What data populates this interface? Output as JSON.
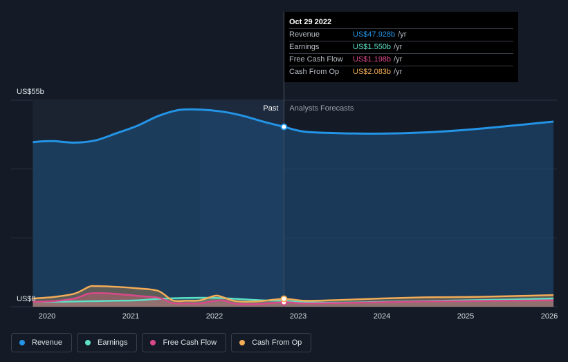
{
  "colors": {
    "revenue": "#2394e6",
    "earnings": "#5de0c6",
    "free_cash_flow": "#d9498a",
    "cash_from_op": "#f3ac57",
    "background": "#151b26"
  },
  "tooltip": {
    "date": "Oct 29 2022",
    "rows": [
      {
        "name": "Revenue",
        "value": "US$47.928b",
        "unit": "/yr",
        "color": "#2394e6"
      },
      {
        "name": "Earnings",
        "value": "US$1.550b",
        "unit": "/yr",
        "color": "#5de0c6"
      },
      {
        "name": "Free Cash Flow",
        "value": "US$1.198b",
        "unit": "/yr",
        "color": "#d9498a"
      },
      {
        "name": "Cash From Op",
        "value": "US$2.083b",
        "unit": "/yr",
        "color": "#f3ac57"
      }
    ]
  },
  "legend": [
    {
      "label": "Revenue",
      "icon": "dot-icon",
      "color": "#2394e6"
    },
    {
      "label": "Earnings",
      "icon": "dot-icon",
      "color": "#5de0c6"
    },
    {
      "label": "Free Cash Flow",
      "icon": "dot-icon",
      "color": "#d9498a"
    },
    {
      "label": "Cash From Op",
      "icon": "dot-icon",
      "color": "#f3ac57"
    }
  ],
  "chart_data": {
    "type": "line",
    "y_top_label": "US$55b",
    "y_bottom_label": "US$0",
    "ylim": [
      0,
      55
    ],
    "xlim": [
      2019.85,
      2026.05
    ],
    "x_ticks": [
      {
        "value": 2020,
        "label": "2020"
      },
      {
        "value": 2021,
        "label": "2021"
      },
      {
        "value": 2022,
        "label": "2022"
      },
      {
        "value": 2023,
        "label": "2023"
      },
      {
        "value": 2024,
        "label": "2024"
      },
      {
        "value": 2025,
        "label": "2025"
      },
      {
        "value": 2026,
        "label": "2026"
      }
    ],
    "divider_x": 2022.83,
    "past_label": "Past",
    "forecast_label": "Analysts Forecasts",
    "grid": true,
    "series": [
      {
        "name": "Revenue",
        "key": "revenue",
        "x": [
          2019.83,
          2019.92,
          2020.08,
          2020.33,
          2020.58,
          2020.83,
          2021.08,
          2021.33,
          2021.58,
          2021.83,
          2022.08,
          2022.33,
          2022.58,
          2022.83,
          2023.08,
          2023.5,
          2024.0,
          2024.5,
          2025.0,
          2025.5,
          2026.05
        ],
        "y": [
          43.8,
          44.0,
          44.1,
          43.7,
          44.3,
          46.2,
          48.2,
          50.8,
          52.4,
          52.5,
          52.0,
          50.9,
          49.3,
          47.9,
          46.6,
          46.2,
          46.1,
          46.4,
          47.1,
          48.1,
          49.3
        ]
      },
      {
        "name": "Earnings",
        "key": "earnings",
        "x": [
          2019.83,
          2020.08,
          2020.33,
          2020.58,
          2020.83,
          2021.08,
          2021.33,
          2021.58,
          2021.83,
          2022.08,
          2022.33,
          2022.58,
          2022.83,
          2023.08,
          2023.5,
          2024.0,
          2024.5,
          2025.0,
          2025.5,
          2026.05
        ],
        "y": [
          1.3,
          1.3,
          1.4,
          1.5,
          1.6,
          1.7,
          2.1,
          2.3,
          2.4,
          2.3,
          2.0,
          1.7,
          1.6,
          1.2,
          1.1,
          1.3,
          1.5,
          1.7,
          1.9,
          2.2
        ]
      },
      {
        "name": "Free Cash Flow",
        "key": "free_cash_flow",
        "x": [
          2019.83,
          2020.08,
          2020.33,
          2020.5,
          2020.67,
          2020.83,
          2021.08,
          2021.33,
          2021.5,
          2021.67,
          2021.83,
          2022.08,
          2022.25,
          2022.5,
          2022.83,
          2023.08,
          2023.5,
          2024.0,
          2024.5,
          2025.0,
          2025.5,
          2026.05
        ],
        "y": [
          1.3,
          1.5,
          2.2,
          3.5,
          3.6,
          3.4,
          2.9,
          2.4,
          1.0,
          0.9,
          0.9,
          1.7,
          0.8,
          0.7,
          1.2,
          0.9,
          1.0,
          1.2,
          1.4,
          1.5,
          1.6,
          1.7
        ]
      },
      {
        "name": "Cash From Op",
        "key": "cash_from_op",
        "x": [
          2019.83,
          2020.08,
          2020.33,
          2020.5,
          2020.58,
          2020.83,
          2021.08,
          2021.33,
          2021.5,
          2021.67,
          2021.83,
          2022.0,
          2022.08,
          2022.25,
          2022.5,
          2022.83,
          2023.08,
          2023.5,
          2024.0,
          2024.5,
          2025.0,
          2025.5,
          2026.05
        ],
        "y": [
          2.2,
          2.6,
          3.5,
          5.3,
          5.5,
          5.3,
          4.9,
          4.2,
          1.7,
          1.6,
          1.7,
          2.9,
          2.7,
          1.5,
          1.4,
          2.1,
          1.6,
          1.8,
          2.2,
          2.5,
          2.6,
          2.8,
          3.1
        ]
      }
    ],
    "marker_x": 2022.83
  }
}
